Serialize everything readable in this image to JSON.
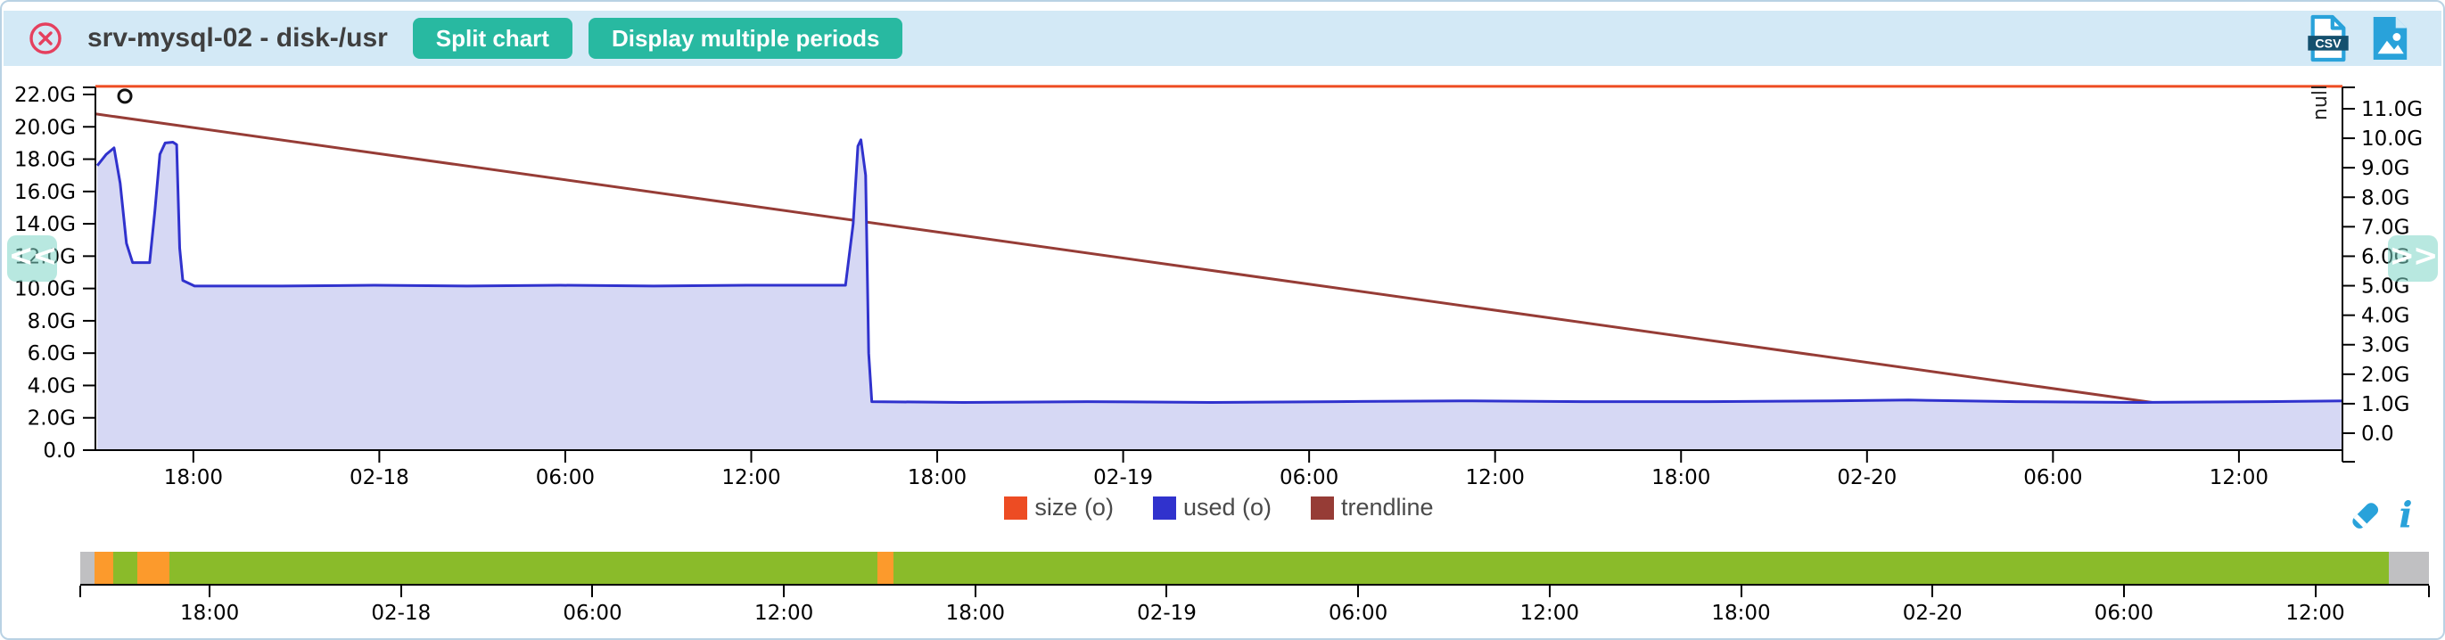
{
  "header": {
    "title": "srv-mysql-02 - disk-/usr",
    "buttons": [
      {
        "id": "split-chart",
        "label": "Split chart"
      },
      {
        "id": "display-multiple-periods",
        "label": "Display multiple periods"
      }
    ],
    "export": {
      "csv_label": "CSV",
      "icons": [
        "csv-export-icon",
        "image-export-icon"
      ]
    }
  },
  "nav": {
    "prev_label": "<<",
    "next_label": ">>"
  },
  "legend": [
    {
      "label": "size (o)",
      "color": "#ed4c23"
    },
    {
      "label": "used (o)",
      "color": "#3032cd"
    },
    {
      "label": "trendline",
      "color": "#963c36"
    }
  ],
  "tools": [
    "eraser-icon",
    "info-icon"
  ],
  "colors": {
    "header_bg": "#d3e9f6",
    "button_teal": "#28b9a1",
    "close_red": "#e5405e",
    "icon_blue": "#29a2da",
    "size_line": "#ee4c22",
    "used_line": "#3032cd",
    "used_fill": "#d6d8f4",
    "trendline": "#963c36",
    "overview_green": "#8abb2a",
    "overview_orange": "#fc9a2c",
    "overview_gray": "#c0c0c2"
  },
  "chart_data": {
    "type": "area",
    "title": "srv-mysql-02 - disk-/usr",
    "grid": false,
    "legend_position": "bottom-center",
    "x_axis": {
      "span_hours": 72.5,
      "first_tick_offset_hours": 3.16,
      "tick_interval_hours": 6,
      "tick_labels": [
        "18:00",
        "02-18",
        "06:00",
        "12:00",
        "18:00",
        "02-19",
        "06:00",
        "12:00",
        "18:00",
        "02-20",
        "06:00",
        "12:00"
      ]
    },
    "y_axis_left": {
      "min": 0,
      "max": 22,
      "tick_step": 2,
      "unit": "G",
      "tick_labels": [
        "0.0",
        "2.0G",
        "4.0G",
        "6.0G",
        "8.0G",
        "10.0G",
        "12.0G",
        "14.0G",
        "16.0G",
        "18.0G",
        "20.0G",
        "22.0G"
      ]
    },
    "y_axis_right": {
      "min": 0,
      "max": 11,
      "tick_step": 1,
      "unit": "G",
      "top_label": "null",
      "tick_labels": [
        "0.0",
        "1.0G",
        "2.0G",
        "3.0G",
        "4.0G",
        "5.0G",
        "6.0G",
        "7.0G",
        "8.0G",
        "9.0G",
        "10.0G",
        "11.0G"
      ]
    },
    "series": [
      {
        "name": "size (o)",
        "type": "line",
        "color": "#ee4c22",
        "width": 3,
        "points_hours_value_G": [
          [
            0,
            22.5
          ],
          [
            72.5,
            22.5
          ]
        ]
      },
      {
        "name": "used (o)",
        "type": "area",
        "line_color": "#3032cd",
        "fill_color": "#d6d8f4",
        "width": 3,
        "points_hours_value_G": [
          [
            0.06,
            17.6
          ],
          [
            0.35,
            18.3
          ],
          [
            0.6,
            18.7
          ],
          [
            0.8,
            16.5
          ],
          [
            1.0,
            12.8
          ],
          [
            1.2,
            11.6
          ],
          [
            1.75,
            11.6
          ],
          [
            1.92,
            14.8
          ],
          [
            2.08,
            18.3
          ],
          [
            2.25,
            19.0
          ],
          [
            2.5,
            19.05
          ],
          [
            2.62,
            18.9
          ],
          [
            2.72,
            12.5
          ],
          [
            2.82,
            10.5
          ],
          [
            3.2,
            10.15
          ],
          [
            6,
            10.15
          ],
          [
            9,
            10.2
          ],
          [
            12,
            10.15
          ],
          [
            15,
            10.2
          ],
          [
            18,
            10.15
          ],
          [
            21,
            10.2
          ],
          [
            24.2,
            10.2
          ],
          [
            24.45,
            14.0
          ],
          [
            24.6,
            18.8
          ],
          [
            24.7,
            19.2
          ],
          [
            24.85,
            17.0
          ],
          [
            24.95,
            6.0
          ],
          [
            25.05,
            3.0
          ],
          [
            28,
            2.95
          ],
          [
            32,
            3.0
          ],
          [
            36,
            2.95
          ],
          [
            40,
            3.0
          ],
          [
            44,
            3.05
          ],
          [
            48,
            3.0
          ],
          [
            52,
            3.0
          ],
          [
            56,
            3.05
          ],
          [
            58.5,
            3.1
          ],
          [
            62,
            3.0
          ],
          [
            66,
            2.95
          ],
          [
            70,
            3.0
          ],
          [
            72.5,
            3.05
          ]
        ]
      },
      {
        "name": "trendline",
        "type": "line",
        "color": "#963c36",
        "width": 3,
        "points_hours_value_G": [
          [
            0,
            20.8
          ],
          [
            72.5,
            1.3
          ]
        ]
      }
    ],
    "markers": [
      {
        "shape": "circle",
        "x_hours": 0.95,
        "value_G": 21.9,
        "stroke": "#111111"
      }
    ]
  },
  "overview_bar": {
    "segments": [
      {
        "status": "unknown",
        "color": "#c0c0c2",
        "from": 0.0,
        "to": 0.0061
      },
      {
        "status": "warning",
        "color": "#fc9a2c",
        "from": 0.0061,
        "to": 0.014
      },
      {
        "status": "ok",
        "color": "#8abb2a",
        "from": 0.014,
        "to": 0.0243
      },
      {
        "status": "warning",
        "color": "#fc9a2c",
        "from": 0.0243,
        "to": 0.038
      },
      {
        "status": "ok",
        "color": "#8abb2a",
        "from": 0.038,
        "to": 0.3394
      },
      {
        "status": "warning",
        "color": "#fc9a2c",
        "from": 0.3394,
        "to": 0.3462
      },
      {
        "status": "ok",
        "color": "#8abb2a",
        "from": 0.3462,
        "to": 0.9829
      },
      {
        "status": "unknown",
        "color": "#c0c0c2",
        "from": 0.9829,
        "to": 1.0
      }
    ],
    "axis": {
      "first_tick_fraction": 0.0551,
      "tick_spacing_fraction": 0.0815,
      "tick_labels": [
        "18:00",
        "02-18",
        "06:00",
        "12:00",
        "18:00",
        "02-19",
        "06:00",
        "12:00",
        "18:00",
        "02-20",
        "06:00",
        "12:00"
      ]
    }
  }
}
